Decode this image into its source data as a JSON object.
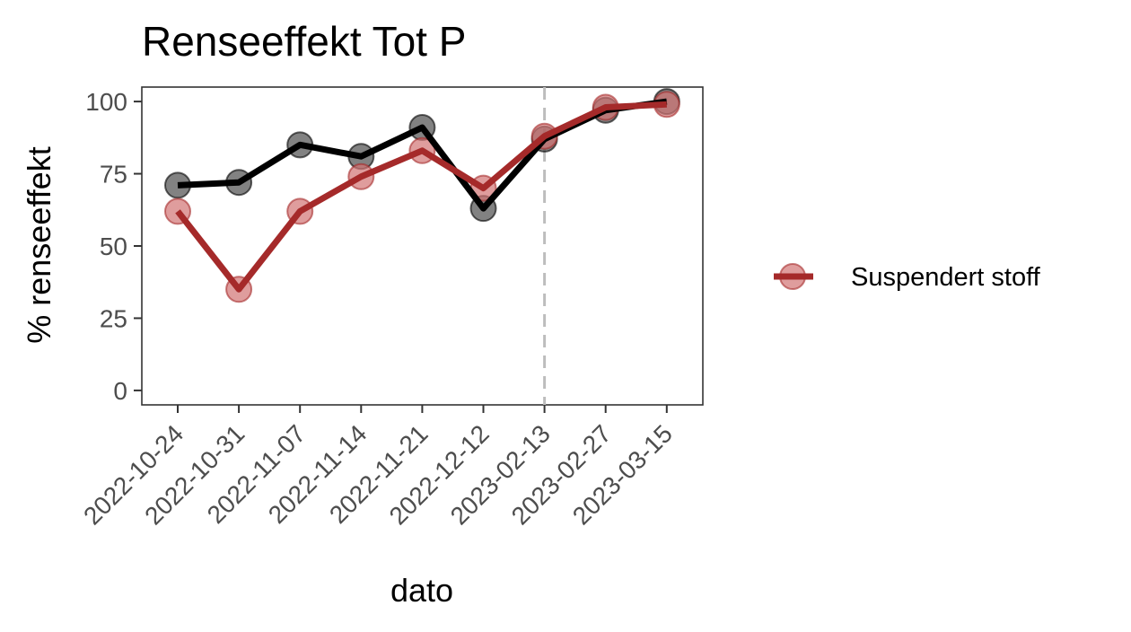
{
  "chart_data": {
    "type": "line",
    "title": "Renseeffekt Tot P",
    "xlabel": "dato",
    "ylabel": "% renseeffekt",
    "categories": [
      "2022-10-24",
      "2022-10-31",
      "2022-11-07",
      "2022-11-14",
      "2022-11-21",
      "2022-12-12",
      "2023-02-13",
      "2023-02-27",
      "2023-03-15"
    ],
    "ylim": [
      -5,
      105
    ],
    "yticks": [
      0,
      25,
      50,
      75,
      100
    ],
    "grid": false,
    "reference_line": {
      "x": "2023-02-13",
      "style": "dashed",
      "color": "#bdbdbd"
    },
    "series": [
      {
        "name": "",
        "color": "#000000",
        "point_color": "#4d4d4d",
        "values": [
          71,
          72,
          85,
          81,
          91,
          63,
          87,
          97,
          100
        ]
      },
      {
        "name": "Suspendert stoff",
        "color": "#a52a2a",
        "point_color": "#d27474",
        "values": [
          62,
          35,
          62,
          74,
          83,
          70,
          88,
          98,
          99
        ]
      }
    ],
    "legend": {
      "position": "right",
      "entries": [
        "Suspendert stoff"
      ]
    }
  }
}
